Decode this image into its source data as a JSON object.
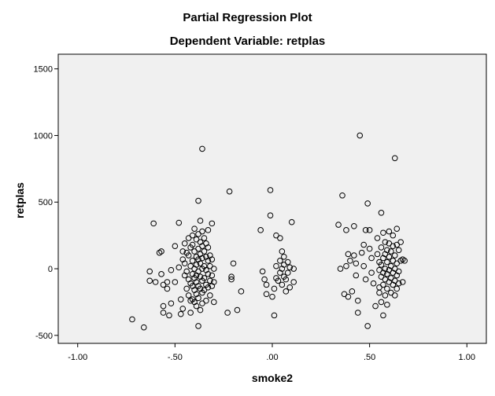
{
  "chart_data": {
    "type": "scatter",
    "title": "Partial Regression Plot",
    "subtitle": "Dependent Variable: retplas",
    "xlabel": "smoke2",
    "ylabel": "retplas",
    "xlim": [
      -1.1,
      1.1
    ],
    "ylim": [
      -560,
      1610
    ],
    "xticks": [
      -1.0,
      -0.5,
      0.0,
      0.5,
      1.0
    ],
    "xtick_labels": [
      "-1.00",
      "-.50",
      ".00",
      ".50",
      "1.00"
    ],
    "yticks": [
      -500,
      0,
      500,
      1000,
      1500
    ],
    "ytick_labels": [
      "-500",
      "0",
      "500",
      "1000",
      "1500"
    ],
    "grid": false,
    "colors": {
      "plot_bg": "#f0f0f0",
      "marker": "#000000"
    },
    "points": [
      [
        -0.72,
        -380
      ],
      [
        -0.66,
        -440
      ],
      [
        -0.61,
        340
      ],
      [
        -0.63,
        -20
      ],
      [
        -0.63,
        -90
      ],
      [
        -0.6,
        -100
      ],
      [
        -0.58,
        120
      ],
      [
        -0.57,
        130
      ],
      [
        -0.57,
        -40
      ],
      [
        -0.56,
        -120
      ],
      [
        -0.56,
        -280
      ],
      [
        -0.56,
        -330
      ],
      [
        -0.54,
        -100
      ],
      [
        -0.54,
        -150
      ],
      [
        -0.53,
        -350
      ],
      [
        -0.52,
        -10
      ],
      [
        -0.52,
        -260
      ],
      [
        -0.5,
        170
      ],
      [
        -0.5,
        -100
      ],
      [
        -0.48,
        345
      ],
      [
        -0.48,
        10
      ],
      [
        -0.47,
        -230
      ],
      [
        -0.47,
        -340
      ],
      [
        -0.46,
        130
      ],
      [
        -0.46,
        70
      ],
      [
        -0.46,
        -300
      ],
      [
        -0.45,
        190
      ],
      [
        -0.45,
        40
      ],
      [
        -0.45,
        -50
      ],
      [
        -0.44,
        120
      ],
      [
        -0.44,
        -20
      ],
      [
        -0.44,
        -150
      ],
      [
        -0.43,
        230
      ],
      [
        -0.43,
        100
      ],
      [
        -0.43,
        -80
      ],
      [
        -0.43,
        -200
      ],
      [
        -0.42,
        160
      ],
      [
        -0.42,
        20
      ],
      [
        -0.42,
        -110
      ],
      [
        -0.42,
        -240
      ],
      [
        -0.42,
        -330
      ],
      [
        -0.41,
        250
      ],
      [
        -0.41,
        180
      ],
      [
        -0.41,
        60
      ],
      [
        -0.41,
        -40
      ],
      [
        -0.41,
        -130
      ],
      [
        -0.41,
        -230
      ],
      [
        -0.4,
        300
      ],
      [
        -0.4,
        130
      ],
      [
        -0.4,
        0
      ],
      [
        -0.4,
        -70
      ],
      [
        -0.4,
        -160
      ],
      [
        -0.4,
        -250
      ],
      [
        -0.39,
        220
      ],
      [
        -0.39,
        90
      ],
      [
        -0.39,
        30
      ],
      [
        -0.39,
        -50
      ],
      [
        -0.39,
        -100
      ],
      [
        -0.39,
        -190
      ],
      [
        -0.39,
        -280
      ],
      [
        -0.38,
        510
      ],
      [
        -0.38,
        260
      ],
      [
        -0.38,
        150
      ],
      [
        -0.38,
        70
      ],
      [
        -0.38,
        -20
      ],
      [
        -0.38,
        -130
      ],
      [
        -0.38,
        -220
      ],
      [
        -0.38,
        -430
      ],
      [
        -0.37,
        360
      ],
      [
        -0.37,
        200
      ],
      [
        -0.37,
        110
      ],
      [
        -0.37,
        40
      ],
      [
        -0.37,
        -60
      ],
      [
        -0.37,
        -150
      ],
      [
        -0.37,
        -310
      ],
      [
        -0.36,
        900
      ],
      [
        -0.36,
        280
      ],
      [
        -0.36,
        170
      ],
      [
        -0.36,
        80
      ],
      [
        -0.36,
        0
      ],
      [
        -0.36,
        -90
      ],
      [
        -0.36,
        -180
      ],
      [
        -0.36,
        -260
      ],
      [
        -0.35,
        230
      ],
      [
        -0.35,
        130
      ],
      [
        -0.35,
        20
      ],
      [
        -0.35,
        -70
      ],
      [
        -0.35,
        -160
      ],
      [
        -0.34,
        190
      ],
      [
        -0.34,
        90
      ],
      [
        -0.34,
        -10
      ],
      [
        -0.34,
        -120
      ],
      [
        -0.34,
        -240
      ],
      [
        -0.33,
        290
      ],
      [
        -0.33,
        160
      ],
      [
        -0.33,
        60
      ],
      [
        -0.33,
        -40
      ],
      [
        -0.33,
        -140
      ],
      [
        -0.32,
        100
      ],
      [
        -0.32,
        20
      ],
      [
        -0.32,
        -90
      ],
      [
        -0.32,
        -200
      ],
      [
        -0.31,
        340
      ],
      [
        -0.31,
        70
      ],
      [
        -0.31,
        -50
      ],
      [
        -0.31,
        -130
      ],
      [
        -0.3,
        0
      ],
      [
        -0.3,
        -100
      ],
      [
        -0.3,
        -250
      ],
      [
        -0.22,
        580
      ],
      [
        -0.23,
        -330
      ],
      [
        -0.21,
        -60
      ],
      [
        -0.21,
        -80
      ],
      [
        -0.2,
        40
      ],
      [
        -0.18,
        -310
      ],
      [
        -0.16,
        -170
      ],
      [
        -0.01,
        590
      ],
      [
        -0.06,
        290
      ],
      [
        -0.05,
        -20
      ],
      [
        -0.04,
        -80
      ],
      [
        -0.03,
        -120
      ],
      [
        -0.03,
        -190
      ],
      [
        -0.01,
        400
      ],
      [
        0.0,
        -210
      ],
      [
        0.01,
        -350
      ],
      [
        0.01,
        -150
      ],
      [
        0.02,
        250
      ],
      [
        0.02,
        20
      ],
      [
        0.02,
        -70
      ],
      [
        0.03,
        -90
      ],
      [
        0.04,
        230
      ],
      [
        0.04,
        60
      ],
      [
        0.04,
        -30
      ],
      [
        0.05,
        130
      ],
      [
        0.05,
        0
      ],
      [
        0.05,
        -120
      ],
      [
        0.06,
        90
      ],
      [
        0.06,
        30
      ],
      [
        0.06,
        -60
      ],
      [
        0.07,
        -80
      ],
      [
        0.07,
        -170
      ],
      [
        0.08,
        50
      ],
      [
        0.08,
        -30
      ],
      [
        0.09,
        -140
      ],
      [
        0.09,
        10
      ],
      [
        0.1,
        350
      ],
      [
        0.11,
        -100
      ],
      [
        0.11,
        0
      ],
      [
        0.34,
        330
      ],
      [
        0.35,
        0
      ],
      [
        0.36,
        550
      ],
      [
        0.37,
        -190
      ],
      [
        0.38,
        290
      ],
      [
        0.38,
        20
      ],
      [
        0.39,
        110
      ],
      [
        0.39,
        -210
      ],
      [
        0.4,
        60
      ],
      [
        0.41,
        -170
      ],
      [
        0.42,
        320
      ],
      [
        0.42,
        100
      ],
      [
        0.43,
        40
      ],
      [
        0.43,
        -50
      ],
      [
        0.44,
        -240
      ],
      [
        0.44,
        -330
      ],
      [
        0.45,
        1000
      ],
      [
        0.46,
        120
      ],
      [
        0.47,
        180
      ],
      [
        0.47,
        20
      ],
      [
        0.48,
        290
      ],
      [
        0.48,
        -80
      ],
      [
        0.49,
        490
      ],
      [
        0.49,
        -430
      ],
      [
        0.5,
        290
      ],
      [
        0.5,
        150
      ],
      [
        0.51,
        80
      ],
      [
        0.51,
        -30
      ],
      [
        0.52,
        -110
      ],
      [
        0.53,
        -280
      ],
      [
        0.54,
        230
      ],
      [
        0.54,
        110
      ],
      [
        0.55,
        50
      ],
      [
        0.55,
        -10
      ],
      [
        0.55,
        -140
      ],
      [
        0.55,
        -180
      ],
      [
        0.56,
        420
      ],
      [
        0.56,
        160
      ],
      [
        0.56,
        30
      ],
      [
        0.56,
        -60
      ],
      [
        0.56,
        -250
      ],
      [
        0.57,
        270
      ],
      [
        0.57,
        80
      ],
      [
        0.57,
        -30
      ],
      [
        0.57,
        -120
      ],
      [
        0.57,
        -350
      ],
      [
        0.58,
        200
      ],
      [
        0.58,
        110
      ],
      [
        0.58,
        0
      ],
      [
        0.58,
        -80
      ],
      [
        0.58,
        -200
      ],
      [
        0.59,
        140
      ],
      [
        0.59,
        50
      ],
      [
        0.59,
        -40
      ],
      [
        0.59,
        -150
      ],
      [
        0.59,
        -270
      ],
      [
        0.6,
        280
      ],
      [
        0.6,
        190
      ],
      [
        0.6,
        90
      ],
      [
        0.6,
        -10
      ],
      [
        0.6,
        -100
      ],
      [
        0.61,
        130
      ],
      [
        0.61,
        20
      ],
      [
        0.61,
        -70
      ],
      [
        0.61,
        -180
      ],
      [
        0.62,
        250
      ],
      [
        0.62,
        170
      ],
      [
        0.62,
        60
      ],
      [
        0.62,
        -30
      ],
      [
        0.62,
        -120
      ],
      [
        0.63,
        830
      ],
      [
        0.63,
        100
      ],
      [
        0.63,
        0
      ],
      [
        0.63,
        -90
      ],
      [
        0.63,
        -200
      ],
      [
        0.64,
        300
      ],
      [
        0.64,
        180
      ],
      [
        0.64,
        40
      ],
      [
        0.64,
        -50
      ],
      [
        0.64,
        -150
      ],
      [
        0.65,
        140
      ],
      [
        0.65,
        -20
      ],
      [
        0.65,
        -110
      ],
      [
        0.66,
        200
      ],
      [
        0.66,
        60
      ],
      [
        0.67,
        -100
      ],
      [
        0.67,
        70
      ],
      [
        0.68,
        60
      ]
    ]
  }
}
